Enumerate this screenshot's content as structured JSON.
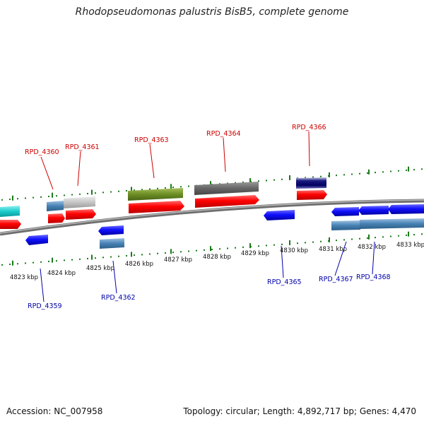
{
  "title": "Rhodopseudomonas palustris BisB5, complete genome",
  "footer": {
    "accession": "Accession: NC_007958",
    "summary": "Topology: circular; Length: 4,892,717 bp; Genes: 4,470"
  },
  "colors": {
    "backbone": "#8a8a8a",
    "forward_label": "#cc0000",
    "reverse_label": "#0000aa",
    "tick": "#1a7a1a"
  },
  "ticks": [
    "4823 kbp",
    "4824 kbp",
    "4825 kbp",
    "4826 kbp",
    "4827 kbp",
    "4828 kbp",
    "4829 kbp",
    "4830 kbp",
    "4831 kbp",
    "4832 kbp",
    "4833 kbp"
  ],
  "forward_gene_labels": [
    "RPD_4360",
    "RPD_4361",
    "RPD_4363",
    "RPD_4364",
    "RPD_4366"
  ],
  "reverse_gene_labels": [
    "RPD_4359",
    "RPD_4362",
    "RPD_4365",
    "RPD_4367",
    "RPD_4368"
  ]
}
